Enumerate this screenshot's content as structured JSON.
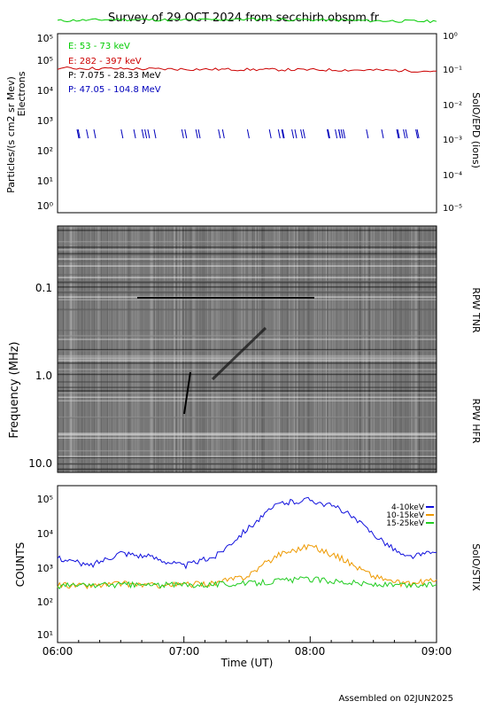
{
  "title": "Survey of 29 OCT 2024 from secchirh.obspm.fr",
  "footer": "Assembled on 02JUN2025",
  "colors": {
    "axis": "#000000",
    "e_low": "#00cc00",
    "e_high": "#cc0000",
    "p_low": "#000000",
    "p_high": "#0000bb",
    "stix_low": "#1010dd",
    "stix_mid": "#ee9900",
    "stix_high": "#22cc22"
  },
  "chart_data": [
    {
      "type": "line",
      "ylabel": "Particles/(s cm2 sr Mev)",
      "ylabel2": "Electrons",
      "right_label": "SolO/EPD (ions)",
      "yscale": "log",
      "ylim": [
        1,
        100000
      ],
      "y_ticks": [
        "10⁰",
        "10¹",
        "10²",
        "10³",
        "10⁴",
        "10⁵",
        "10⁵"
      ],
      "y2lim": [
        1e-05,
        1
      ],
      "y2_ticks": [
        "10⁻⁵",
        "10⁻⁴",
        "10⁻³",
        "10⁻²",
        "10⁻¹",
        "10⁰"
      ],
      "legend": [
        "E: 53 - 73 keV",
        "E: 282 - 397 keV",
        "P: 7.075 - 28.33 MeV",
        "P: 47.05 - 104.8 MeV"
      ],
      "x": [
        "06:00",
        "06:30",
        "07:00",
        "07:30",
        "08:00",
        "08:30",
        "09:00"
      ],
      "series": [
        {
          "name": "E: 53 - 73 keV",
          "axis": "left",
          "values": [
            230000,
            250000,
            240000,
            255000,
            245000,
            230000,
            220000
          ]
        },
        {
          "name": "E: 282 - 397 keV",
          "axis": "left",
          "values": [
            11000,
            10500,
            10200,
            10000,
            9800,
            9600,
            9000
          ]
        },
        {
          "name": "P: 47.05 - 104.8 MeV",
          "axis": "right",
          "values": [
            0.0012,
            0.0011,
            0.0012,
            0.0011,
            0.0012,
            0.0011,
            0.0011
          ]
        }
      ]
    },
    {
      "type": "heatmap",
      "ylabel": "Frequency (MHz)",
      "y_ticks": [
        "0.1",
        "1.0",
        "10.0"
      ],
      "right_labels": [
        "RPW TNR",
        "RPW HFR"
      ],
      "yscale": "log",
      "ylim": [
        0.02,
        13
      ]
    },
    {
      "type": "line",
      "ylabel": "COUNTS",
      "right_label": "SolO/STIX",
      "yscale": "log",
      "ylim": [
        10,
        100000
      ],
      "y_ticks": [
        "10¹",
        "10²",
        "10³",
        "10⁴",
        "10⁵"
      ],
      "xlabel": "Time (UT)",
      "x_ticks": [
        "06:00",
        "07:00",
        "08:00",
        "09:00"
      ],
      "x": [
        "06:00",
        "06:15",
        "06:30",
        "06:45",
        "07:00",
        "07:15",
        "07:30",
        "07:45",
        "08:00",
        "08:15",
        "08:30",
        "08:45",
        "09:00"
      ],
      "series": [
        {
          "name": "4-10keV",
          "values": [
            1500,
            900,
            2000,
            1500,
            900,
            1600,
            8000,
            35000,
            45000,
            25000,
            6000,
            1500,
            2000
          ]
        },
        {
          "name": "10-15keV",
          "values": [
            300,
            280,
            320,
            290,
            300,
            330,
            500,
            1800,
            3000,
            1400,
            500,
            300,
            400
          ]
        },
        {
          "name": "15-25keV",
          "values": [
            280,
            290,
            300,
            290,
            300,
            310,
            320,
            380,
            420,
            360,
            300,
            280,
            300
          ]
        }
      ]
    }
  ]
}
